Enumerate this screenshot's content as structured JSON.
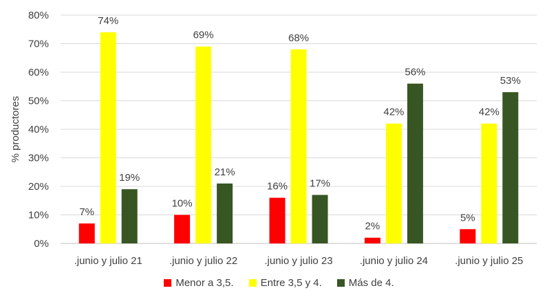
{
  "chart_data": {
    "type": "bar",
    "ylabel": "% productores",
    "ylim": [
      0,
      80
    ],
    "yticks": [
      "0%",
      "10%",
      "20%",
      "30%",
      "40%",
      "50%",
      "60%",
      "70%",
      "80%"
    ],
    "grid": true,
    "legend_position": "bottom",
    "categories": [
      ".junio y julio 21",
      ".junio y julio 22",
      ".junio y julio 23",
      ".junio y julio 24",
      ".junio y julio 25"
    ],
    "series": [
      {
        "name": "Menor a 3,5.",
        "color": "#ff0000",
        "values": [
          7,
          10,
          16,
          2,
          5
        ],
        "labels": [
          "7%",
          "10%",
          "16%",
          "2%",
          "5%"
        ]
      },
      {
        "name": "Entre 3,5 y 4.",
        "color": "#ffff00",
        "values": [
          74,
          69,
          68,
          42,
          42
        ],
        "labels": [
          "74%",
          "69%",
          "68%",
          "42%",
          "42%"
        ]
      },
      {
        "name": "Más de 4.",
        "color": "#375623",
        "values": [
          19,
          21,
          17,
          56,
          53
        ],
        "labels": [
          "19%",
          "21%",
          "17%",
          "56%",
          "53%"
        ]
      }
    ]
  }
}
